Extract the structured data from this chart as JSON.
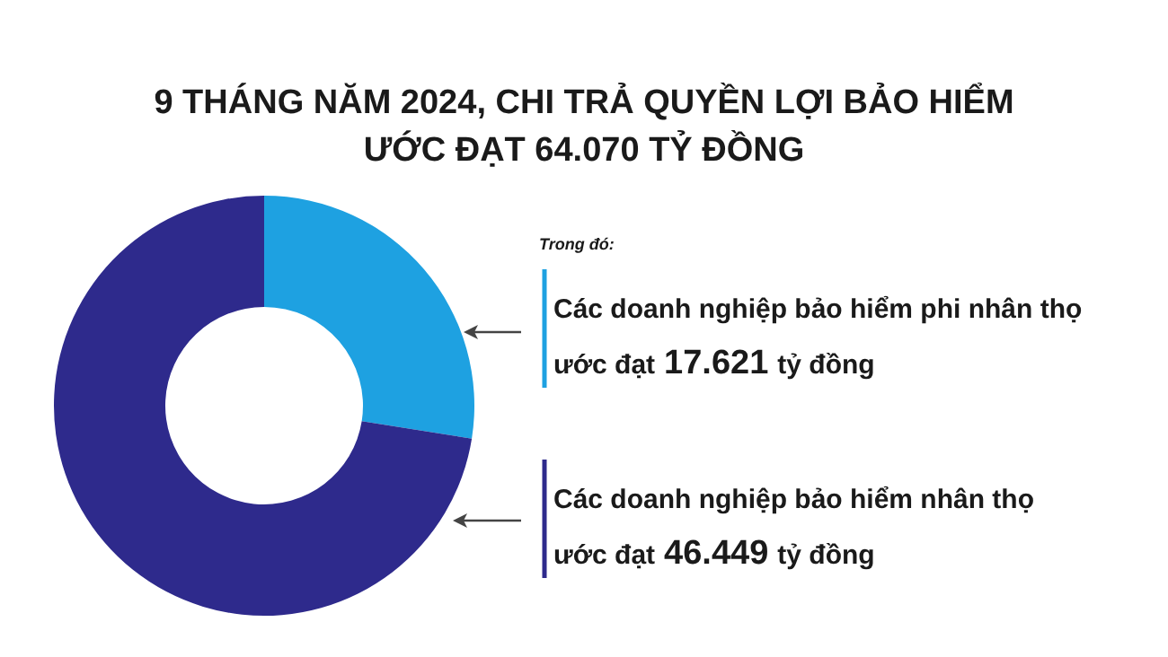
{
  "chart_data": {
    "type": "donut",
    "title": "9 THÁNG NĂM 2024, CHI TRẢ QUYỀN LỢI BẢO HIỂM\nƯỚC ĐẠT 64.070 TỶ ĐỒNG",
    "categories": [
      "Các doanh nghiệp bảo hiểm phi nhân thọ",
      "Các doanh nghiệp bảo hiểm nhân thọ"
    ],
    "values": [
      17621,
      46449
    ],
    "colors": [
      "#1ea1e1",
      "#2e2a8c"
    ],
    "value_labels": [
      "17.621",
      "46.449"
    ],
    "annotations": [
      "Trong đó:",
      "ước đạt",
      "tỷ đồng",
      "ước đạt",
      "tỷ đồng"
    ]
  }
}
